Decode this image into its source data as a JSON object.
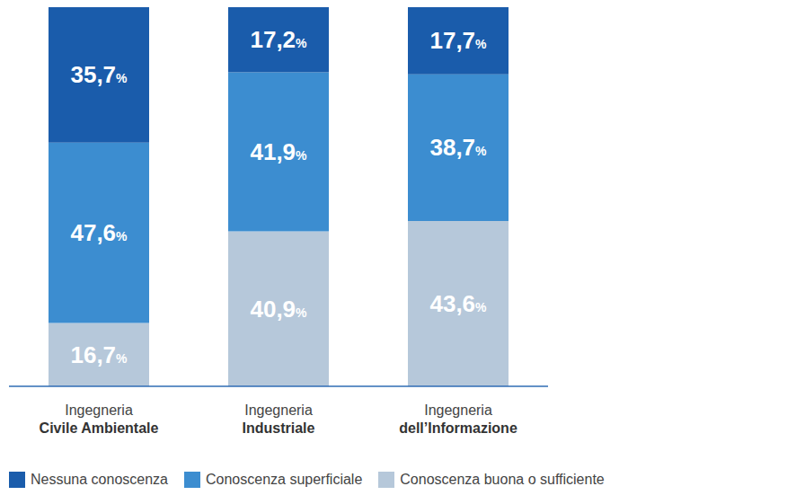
{
  "chart_data": {
    "type": "bar",
    "stacked": true,
    "data_labels": true,
    "tick_labels": "x",
    "legend": "bottom",
    "categories": [
      "Ingegneria Civile Ambientale",
      "Ingegneria Industriale",
      "Ingegneria dell’Informazione"
    ],
    "ylim": [
      0,
      100
    ],
    "series": [
      {
        "name": "Nessuna conoscenza",
        "color": "#1a5cab",
        "values": [
          35.7,
          17.2,
          17.7
        ],
        "value_labels": [
          "35,7%",
          "17,2%",
          "17,7%"
        ]
      },
      {
        "name": "Conoscenza superficiale",
        "color": "#3c8dd0",
        "values": [
          47.6,
          41.9,
          38.7
        ],
        "value_labels": [
          "47,6%",
          "41,9%",
          "38,7%"
        ]
      },
      {
        "name": "Conoscenza buona o sufficiente",
        "color": "#b6c8da",
        "values": [
          16.7,
          40.9,
          43.6
        ],
        "value_labels": [
          "16,7%",
          "40,9%",
          "43,6%"
        ]
      }
    ]
  }
}
